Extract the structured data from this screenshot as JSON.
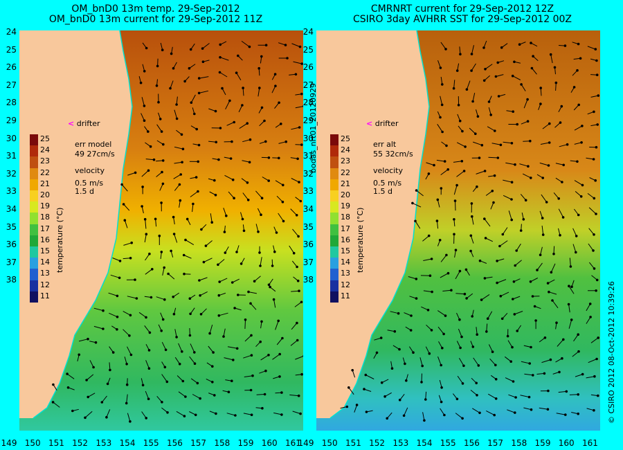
{
  "left": {
    "title_line1": "OM_bnD0 13m temp. 29-Sep-2012",
    "title_line2": "OM_bnD0 13m current for 29-Sep-2012 11Z",
    "err_label": "err model",
    "err_value": "49 27cm/s"
  },
  "right": {
    "title_line1": "CMRNRT current for 29-Sep-2012 12Z",
    "title_line2": "CSIRO 3day AVHRR SST for 29-Sep-2012 00Z",
    "err_label": "err alt",
    "err_value": "55 32cm/s"
  },
  "legend": {
    "drifter": "drifter",
    "velocity": "velocity",
    "speed": "0.5 m/s",
    "duration": "1.5 d",
    "colorbar_title": "temperature (°C)",
    "colorbar_ticks": [
      "25",
      "24",
      "23",
      "22",
      "21",
      "20",
      "19",
      "18",
      "17",
      "16",
      "15",
      "14",
      "13",
      "12",
      "11"
    ]
  },
  "axes": {
    "lat_labels": [
      "24",
      "25",
      "26",
      "27",
      "28",
      "29",
      "30",
      "31",
      "32",
      "33",
      "34",
      "35",
      "36",
      "37",
      "38"
    ],
    "lon_labels": [
      "149",
      "150",
      "151",
      "152",
      "153",
      "154",
      "155",
      "156",
      "157",
      "158",
      "159",
      "160",
      "161"
    ]
  },
  "side_text_middle": "bodas_nrt01_20120929",
  "side_text_right": "© CSIRO 2012   08-Oct-2012 10:39:26",
  "colors": {
    "background": "#00ffff",
    "land": "#f8c89c",
    "coastline": "#00e0d0",
    "drifter_marker": "#ff00ff"
  },
  "colorbar_colors": [
    "#7a0a0a",
    "#b02a0a",
    "#c05010",
    "#e08a10",
    "#f0a800",
    "#f8d020",
    "#d8e820",
    "#90e030",
    "#40c040",
    "#20a838",
    "#20c8a0",
    "#28a0e0",
    "#2060d0",
    "#1830a0",
    "#101060"
  ]
}
